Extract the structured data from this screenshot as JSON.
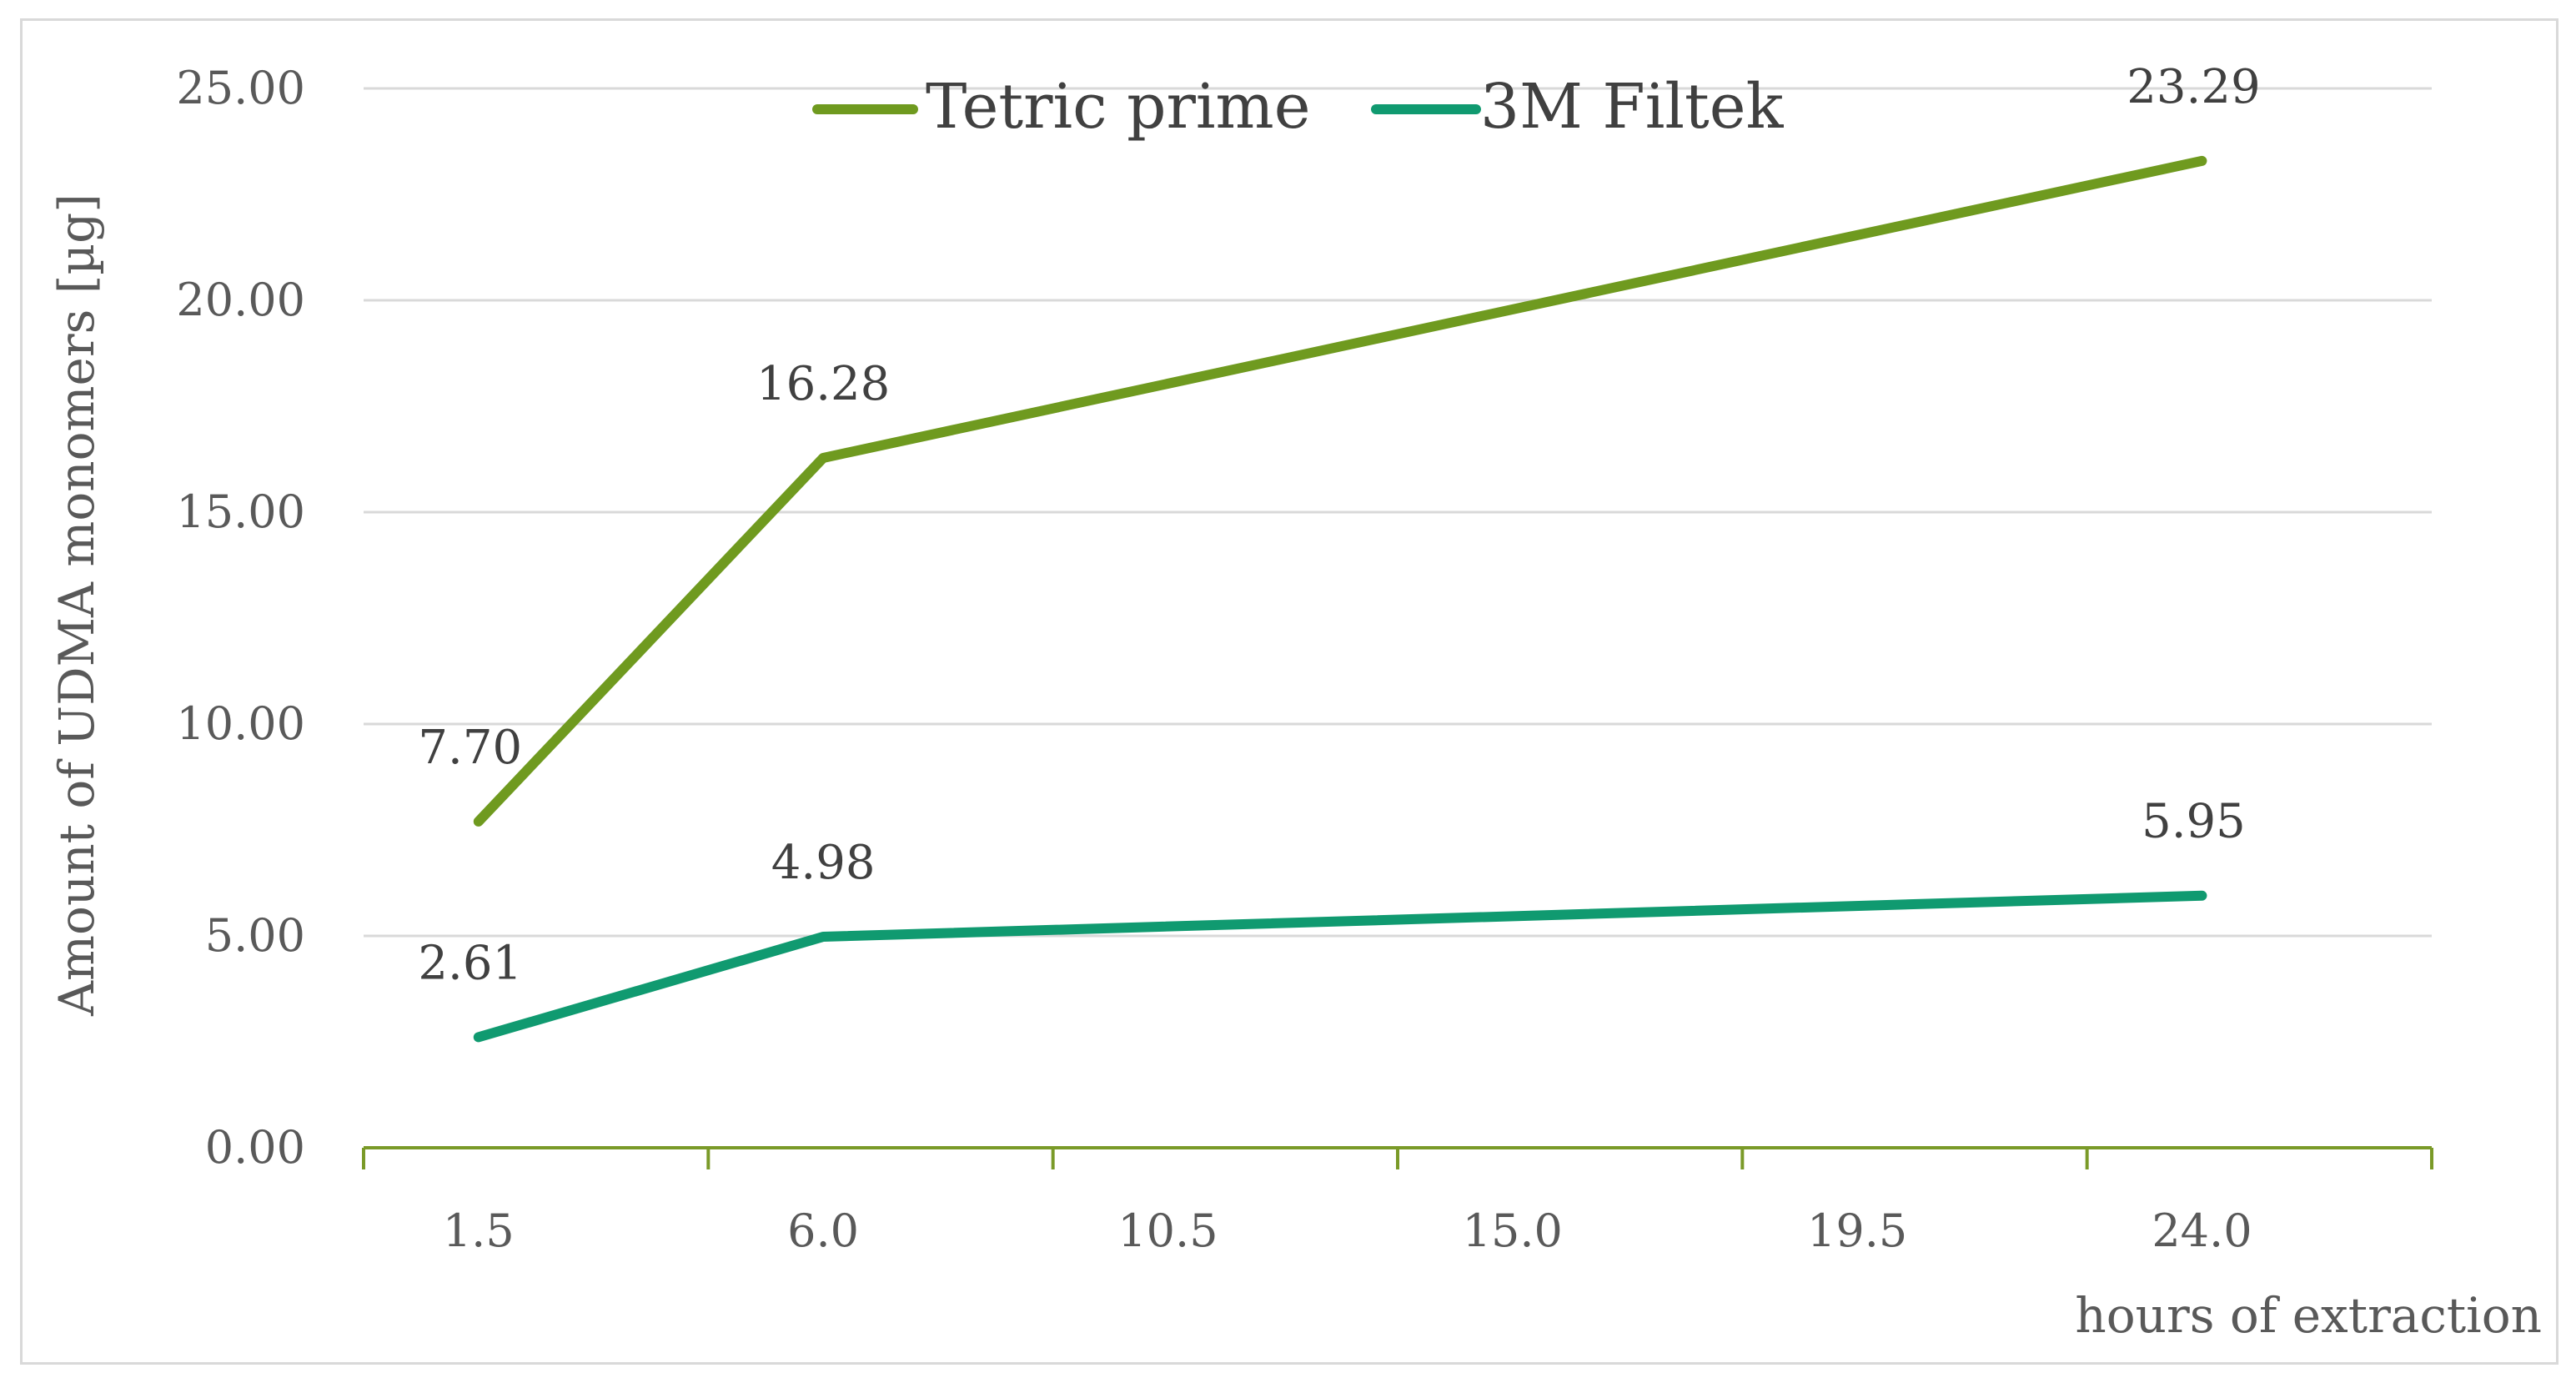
{
  "chart_data": {
    "type": "line",
    "title": "",
    "xlabel": "hours of extraction",
    "ylabel": "Amount of UDMA monomers [µg]",
    "x_ticks": [
      "1.5",
      "6.0",
      "10.5",
      "15.0",
      "19.5",
      "24.0"
    ],
    "y_ticks": [
      "0.00",
      "5.00",
      "10.00",
      "15.00",
      "20.00",
      "25.00"
    ],
    "ylim": [
      0,
      25
    ],
    "grid": true,
    "legend_position": "top",
    "series": [
      {
        "name": "Tetric prime",
        "color": "#6f9a1f",
        "x": [
          1.5,
          6.0,
          24.0
        ],
        "values": [
          7.7,
          16.28,
          23.29
        ],
        "labels": [
          "7.70",
          "16.28",
          "23.29"
        ]
      },
      {
        "name": "3M Filtek",
        "color": "#109a70",
        "x": [
          1.5,
          6.0,
          24.0
        ],
        "values": [
          2.61,
          4.98,
          5.95
        ],
        "labels": [
          "2.61",
          "4.98",
          "5.95"
        ]
      }
    ]
  }
}
